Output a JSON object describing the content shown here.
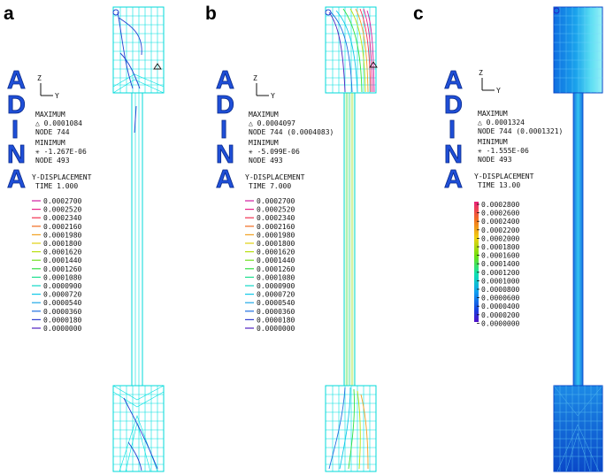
{
  "adina_letters": [
    "A",
    "D",
    "I",
    "N",
    "A"
  ],
  "axes": {
    "z": "Z",
    "y": "Y"
  },
  "colors": {
    "mesh": "#00e5e5",
    "brand": "#1f4fd8",
    "band_dark": "#0e5fd8",
    "band_mid": "#18a8e8",
    "band_light": "#5ee8f0"
  },
  "panels": [
    {
      "letter": "a",
      "max_label": "MAXIMUM",
      "max_line": "△ 0.0001084",
      "max_node": "NODE 744",
      "min_label": "MINIMUM",
      "min_line": "✳ -1.267E-06",
      "min_node": "NODE 493",
      "variable": "Y-DISPLACEMENT",
      "time": "TIME 1.000",
      "legend_style": "lines",
      "legend": [
        {
          "value": "0.0002700",
          "color": "#d01ea0"
        },
        {
          "value": "0.0002520",
          "color": "#e8208a"
        },
        {
          "value": "0.0002340",
          "color": "#f23050"
        },
        {
          "value": "0.0002160",
          "color": "#f26a20"
        },
        {
          "value": "0.0001980",
          "color": "#f2a020"
        },
        {
          "value": "0.0001800",
          "color": "#e0d010"
        },
        {
          "value": "0.0001620",
          "color": "#b8e010"
        },
        {
          "value": "0.0001440",
          "color": "#70e020"
        },
        {
          "value": "0.0001260",
          "color": "#30e040"
        },
        {
          "value": "0.0001080",
          "color": "#20e090"
        },
        {
          "value": "0.0000900",
          "color": "#10d8c8"
        },
        {
          "value": "0.0000720",
          "color": "#10c8e8"
        },
        {
          "value": "0.0000540",
          "color": "#20a8e8"
        },
        {
          "value": "0.0000360",
          "color": "#2070e0"
        },
        {
          "value": "0.0000180",
          "color": "#3040d0"
        },
        {
          "value": "0.0000000",
          "color": "#5020c0"
        }
      ]
    },
    {
      "letter": "b",
      "max_label": "MAXIMUM",
      "max_line": "△ 0.0004097",
      "max_node": "NODE 744 (0.0004083)",
      "min_label": "MINIMUM",
      "min_line": "✳ -5.099E-06",
      "min_node": "NODE 493",
      "variable": "Y-DISPLACEMENT",
      "time": "TIME 7.000",
      "legend_style": "lines",
      "legend": [
        {
          "value": "0.0002700",
          "color": "#d01ea0"
        },
        {
          "value": "0.0002520",
          "color": "#e8208a"
        },
        {
          "value": "0.0002340",
          "color": "#f23050"
        },
        {
          "value": "0.0002160",
          "color": "#f26a20"
        },
        {
          "value": "0.0001980",
          "color": "#f2a020"
        },
        {
          "value": "0.0001800",
          "color": "#e0d010"
        },
        {
          "value": "0.0001620",
          "color": "#b8e010"
        },
        {
          "value": "0.0001440",
          "color": "#70e020"
        },
        {
          "value": "0.0001260",
          "color": "#30e040"
        },
        {
          "value": "0.0001080",
          "color": "#20e090"
        },
        {
          "value": "0.0000900",
          "color": "#10d8c8"
        },
        {
          "value": "0.0000720",
          "color": "#10c8e8"
        },
        {
          "value": "0.0000540",
          "color": "#20a8e8"
        },
        {
          "value": "0.0000360",
          "color": "#2070e0"
        },
        {
          "value": "0.0000180",
          "color": "#3040d0"
        },
        {
          "value": "0.0000000",
          "color": "#5020c0"
        }
      ]
    },
    {
      "letter": "c",
      "max_label": "MAXIMUM",
      "max_line": "△ 0.0001324",
      "max_node": "NODE 744 (0.0001321)",
      "min_label": "MINIMUM",
      "min_line": "✳ -1.555E-06",
      "min_node": "NODE 493",
      "variable": "Y-DISPLACEMENT",
      "time": "TIME 13.00",
      "legend_style": "bar",
      "legend": [
        {
          "value": "0.0002800",
          "color": "#e8207a"
        },
        {
          "value": "0.0002600",
          "color": "#f0404a"
        },
        {
          "value": "0.0002400",
          "color": "#f27020"
        },
        {
          "value": "0.0002200",
          "color": "#f2a010"
        },
        {
          "value": "0.0002000",
          "color": "#f0d010"
        },
        {
          "value": "0.0001800",
          "color": "#c0e010"
        },
        {
          "value": "0.0001600",
          "color": "#70e010"
        },
        {
          "value": "0.0001400",
          "color": "#20e030"
        },
        {
          "value": "0.0001200",
          "color": "#10e090"
        },
        {
          "value": "0.0001000",
          "color": "#10e0d0"
        },
        {
          "value": "0.0000800",
          "color": "#10c0f0"
        },
        {
          "value": "0.0000600",
          "color": "#1090f0"
        },
        {
          "value": "0.0000400",
          "color": "#1050e0"
        },
        {
          "value": "0.0000200",
          "color": "#2020d8"
        },
        {
          "value": "0.0000000",
          "color": "#5010c8"
        }
      ]
    }
  ]
}
